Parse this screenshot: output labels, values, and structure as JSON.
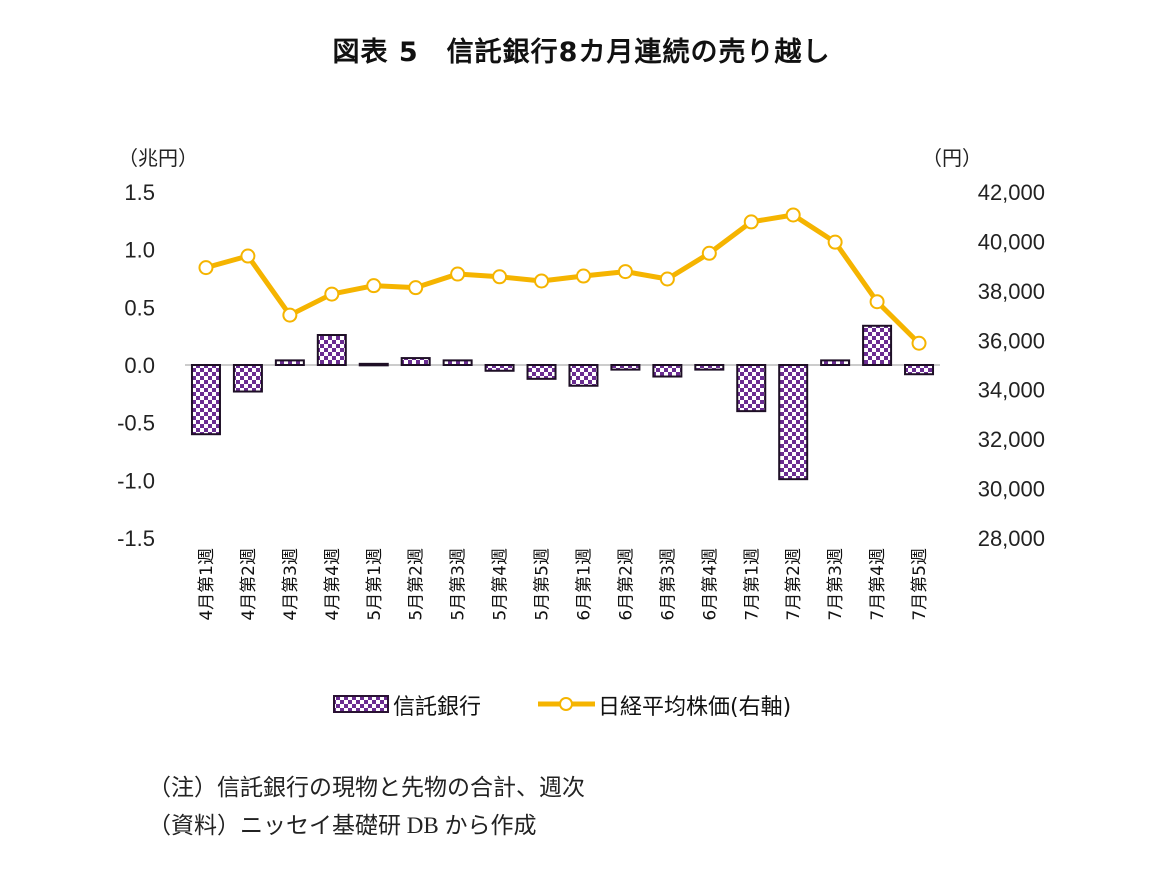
{
  "chart_data": {
    "type": "bar",
    "title": "図表 5　信託銀行8カ月連続の売り越し",
    "categories": [
      "4月第1週",
      "4月第2週",
      "4月第3週",
      "4月第4週",
      "5月第1週",
      "5月第2週",
      "5月第3週",
      "5月第4週",
      "5月第5週",
      "6月第1週",
      "6月第2週",
      "6月第3週",
      "6月第4週",
      "7月第1週",
      "7月第2週",
      "7月第3週",
      "7月第4週",
      "7月第5週"
    ],
    "series": [
      {
        "name": "信託銀行",
        "type": "bar",
        "axis": "left",
        "color": "#6a2c91",
        "values": [
          -0.6,
          -0.23,
          0.04,
          0.26,
          0.01,
          0.06,
          0.04,
          -0.05,
          -0.12,
          -0.18,
          -0.04,
          -0.1,
          -0.04,
          -0.4,
          -0.99,
          0.04,
          0.34,
          -0.08
        ]
      },
      {
        "name": "日経平均株価(右軸)",
        "type": "line",
        "axis": "right",
        "color": "#f5b400",
        "values": [
          38940,
          39410,
          37020,
          37870,
          38210,
          38130,
          38680,
          38570,
          38400,
          38600,
          38780,
          38480,
          39520,
          40790,
          41070,
          39970,
          37560,
          35880
        ]
      }
    ],
    "left_axis": {
      "unit": "（兆円）",
      "ylim": [
        -1.5,
        1.5
      ],
      "ticks": [
        "1.5",
        "1.0",
        "0.5",
        "0.0",
        "-0.5",
        "-1.0",
        "-1.5"
      ],
      "tick_values": [
        1.5,
        1.0,
        0.5,
        0.0,
        -0.5,
        -1.0,
        -1.5
      ]
    },
    "right_axis": {
      "unit": "（円）",
      "ylim": [
        28000,
        42000
      ],
      "ticks": [
        "42,000",
        "40,000",
        "38,000",
        "36,000",
        "34,000",
        "32,000",
        "30,000",
        "28,000"
      ],
      "tick_values": [
        42000,
        40000,
        38000,
        36000,
        34000,
        32000,
        30000,
        28000
      ]
    },
    "grid": false,
    "legend": {
      "position": "bottom",
      "entries": [
        "信託銀行",
        "日経平均株価(右軸)"
      ]
    }
  },
  "notes": {
    "note": "（注）信託銀行の現物と先物の合計、週次",
    "source": "（資料）ニッセイ基礎研 DB から作成"
  }
}
